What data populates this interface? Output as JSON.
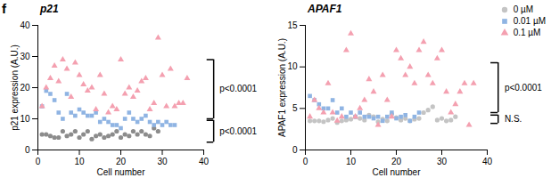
{
  "panel_label": "f",
  "chart_data": [
    {
      "type": "scatter",
      "title": "p21",
      "x_label": "Cell number",
      "y_label": "p21 expression (A.U.)",
      "xlim": [
        0,
        40
      ],
      "xticks": [
        0,
        10,
        20,
        30,
        40
      ],
      "ylim": [
        0,
        40
      ],
      "yticks": [
        0,
        10,
        20,
        30,
        40
      ],
      "series": [
        {
          "name": "0 µM",
          "color": "#8c8c8c",
          "marker": "circle",
          "x": [
            1,
            2,
            3,
            4,
            5,
            6,
            7,
            8,
            9,
            10,
            11,
            12,
            13,
            14,
            15,
            16,
            17,
            18,
            19,
            20,
            21,
            22,
            23,
            24,
            25,
            26,
            27,
            28,
            29
          ],
          "values": [
            5,
            5,
            4.5,
            4,
            4,
            6,
            4.5,
            5,
            6,
            4,
            5,
            6,
            3.5,
            4.5,
            5,
            4,
            4.5,
            5,
            6,
            4,
            5,
            4.5,
            6,
            5,
            6,
            5,
            4.5,
            7,
            6
          ]
        },
        {
          "name": "0.01 µM",
          "color": "#8fb4e3",
          "marker": "square",
          "x": [
            1,
            2,
            3,
            4,
            5,
            6,
            7,
            8,
            9,
            10,
            11,
            12,
            13,
            14,
            15,
            16,
            17,
            18,
            19,
            20,
            21,
            22,
            23,
            24,
            25,
            26,
            27,
            28,
            29,
            30,
            31,
            32,
            33
          ],
          "values": [
            14,
            19,
            18,
            16,
            12,
            10,
            18,
            12,
            11,
            13,
            12,
            11,
            11,
            12,
            9,
            10,
            9,
            8,
            8,
            7,
            10,
            12,
            10,
            9,
            10,
            11,
            9,
            8,
            9,
            8,
            9,
            8,
            8
          ]
        },
        {
          "name": "0.1 µM",
          "color": "#f4a0b0",
          "marker": "triangle",
          "x": [
            1,
            2,
            3,
            4,
            5,
            6,
            7,
            8,
            9,
            10,
            11,
            12,
            13,
            14,
            15,
            16,
            17,
            18,
            19,
            20,
            21,
            22,
            23,
            24,
            25,
            26,
            27,
            28,
            29,
            30,
            31,
            32,
            33,
            34,
            35,
            36
          ],
          "values": [
            14,
            20,
            23,
            27,
            22,
            29,
            26,
            17,
            28,
            24,
            21,
            19,
            20,
            13,
            24,
            18,
            12,
            14,
            13,
            29,
            18,
            20,
            17,
            19,
            22,
            23,
            13,
            15,
            36,
            24,
            14,
            26,
            14,
            15,
            15,
            23
          ]
        }
      ],
      "annotations": [
        {
          "text": "p<0.0001",
          "y_range": [
            10,
            29
          ]
        },
        {
          "text": "p<0.0001",
          "y_range": [
            2.5,
            9.5
          ]
        }
      ]
    },
    {
      "type": "scatter",
      "title": "APAF1",
      "x_label": "Cell number",
      "y_label": "APAF1 expression (A.U.)",
      "xlim": [
        0,
        40
      ],
      "xticks": [
        0,
        10,
        20,
        30,
        40
      ],
      "ylim": [
        0,
        15
      ],
      "yticks": [
        0,
        5,
        10,
        15
      ],
      "legend": "top-right",
      "series": [
        {
          "name": "0 µM",
          "color": "#c4c4c4",
          "marker": "circle",
          "x": [
            1,
            2,
            3,
            4,
            5,
            6,
            7,
            8,
            9,
            10,
            11,
            12,
            13,
            14,
            15,
            16,
            17,
            18,
            19,
            20,
            21,
            22,
            23,
            24,
            25,
            26,
            27,
            28,
            29,
            30,
            31,
            32,
            33
          ],
          "values": [
            3.5,
            3.5,
            3.5,
            3.4,
            3.6,
            3.8,
            3.3,
            3.5,
            3.6,
            3.7,
            4,
            3.8,
            3.6,
            4.2,
            4,
            3.4,
            3.7,
            3.5,
            4.3,
            3.9,
            3.6,
            3.8,
            3.5,
            3.7,
            3.8,
            4.5,
            4.8,
            5.2,
            3.6,
            3.8,
            3.5,
            3.6,
            4
          ]
        },
        {
          "name": "0.01 µM",
          "color": "#8fb4e3",
          "marker": "square",
          "x": [
            1,
            2,
            3,
            4,
            5,
            6,
            7,
            8,
            9,
            10,
            11,
            12,
            13,
            14,
            15,
            16,
            17,
            18,
            19,
            20,
            21,
            22,
            23,
            24,
            25
          ],
          "values": [
            6.5,
            6,
            5.5,
            5,
            5,
            6,
            4.5,
            5,
            4,
            4.5,
            4,
            4.5,
            4,
            4,
            3.8,
            4,
            3.5,
            4,
            4.5,
            3.8,
            4,
            4.2,
            3.5,
            4,
            4.5
          ]
        },
        {
          "name": "0.1 µM",
          "color": "#f4a0b0",
          "marker": "triangle",
          "x": [
            1,
            2,
            3,
            4,
            5,
            6,
            7,
            8,
            9,
            10,
            11,
            12,
            13,
            14,
            15,
            16,
            17,
            18,
            19,
            20,
            21,
            22,
            23,
            24,
            25,
            26,
            27,
            28,
            29,
            30,
            31,
            32,
            33,
            34,
            35,
            36,
            37
          ],
          "values": [
            4,
            6,
            5,
            4.5,
            8,
            4.5,
            3.5,
            4,
            12,
            14,
            4,
            5,
            6,
            8.5,
            7,
            3,
            9,
            6,
            4,
            12,
            11,
            9,
            10,
            8,
            12,
            13,
            9,
            8,
            11,
            12,
            7,
            4.5,
            5.5,
            7,
            8,
            3,
            8
          ]
        }
      ],
      "annotations": [
        {
          "text": "p<0.0001",
          "y_range": [
            4.5,
            10.5
          ]
        },
        {
          "text": "N.S.",
          "y_range": [
            3.2,
            4.2
          ]
        }
      ]
    }
  ]
}
